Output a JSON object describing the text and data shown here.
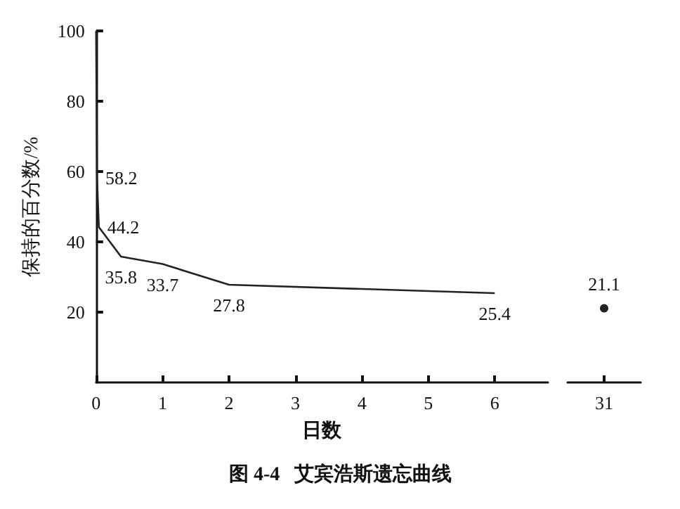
{
  "chart_data": [
    {
      "type": "line",
      "title": "图 4-4   艾宾浩斯遗忘曲线",
      "xlabel": "日数",
      "ylabel": "保持的百分数/%",
      "x": [
        0,
        0.0139,
        0.0417,
        0.375,
        1,
        2,
        6
      ],
      "series": [
        {
          "color": "#222222",
          "values": [
            100,
            58.2,
            44.2,
            35.8,
            33.7,
            27.8,
            25.4
          ],
          "value_labels": [
            null,
            "58.2",
            "44.2",
            "35.8",
            "33.7",
            "27.8",
            "25.4"
          ]
        }
      ],
      "xlim": [
        0,
        6.8
      ],
      "xticks": [
        0,
        1,
        2,
        3,
        4,
        5,
        6
      ],
      "ylim": [
        0,
        100
      ],
      "yticks": [
        20,
        40,
        60,
        80,
        100
      ],
      "grid": false,
      "marker": "none",
      "line_style": "solid"
    },
    {
      "type": "line",
      "categories": [
        "31"
      ],
      "series": [
        {
          "color": "#222222",
          "values": [
            21.1
          ],
          "value_labels": [
            "21.1"
          ]
        }
      ],
      "ylim": [
        0,
        100
      ],
      "yticks": [
        20,
        40,
        60,
        80,
        100
      ],
      "tick_labels": "x",
      "grid": false,
      "marker": "circle",
      "line_style": "solid"
    }
  ]
}
